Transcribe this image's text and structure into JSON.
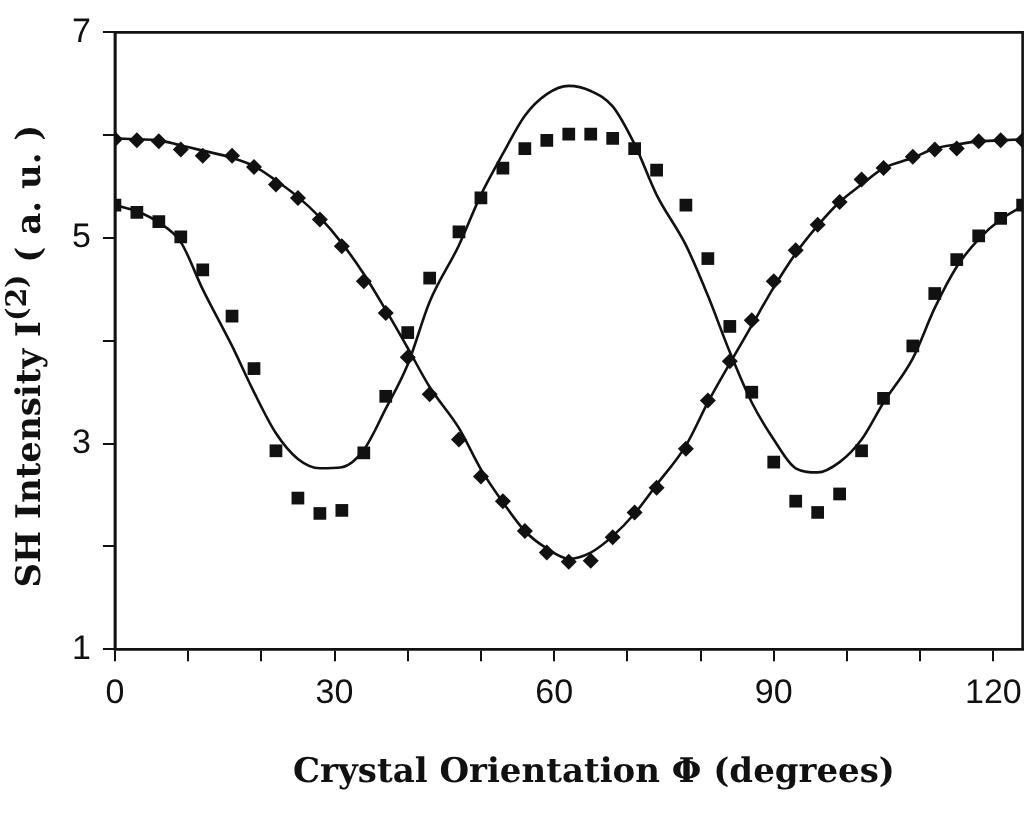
{
  "chart_data": {
    "type": "scatter",
    "xlabel": "Crystal Orientation Φ (degrees)",
    "ylabel": "SH Intensity I$^{(2)}$ ( a. u. )",
    "x": [
      0,
      3,
      6,
      9,
      12,
      16,
      19,
      22,
      25,
      28,
      31,
      34,
      37,
      40,
      43,
      47,
      50,
      53,
      56,
      59,
      62,
      65,
      68,
      71,
      74,
      78,
      81,
      84,
      87,
      90,
      93,
      96,
      99,
      102,
      105,
      109,
      112,
      115,
      118,
      121,
      124
    ],
    "series": [
      {
        "type": "scatter",
        "marker": "diamond",
        "color": "#111111",
        "values": [
          5.96,
          5.95,
          5.94,
          5.86,
          5.8,
          5.8,
          5.69,
          5.52,
          5.39,
          5.18,
          4.92,
          4.58,
          4.27,
          3.84,
          3.48,
          3.04,
          2.68,
          2.44,
          2.15,
          1.94,
          1.85,
          1.86,
          2.09,
          2.33,
          2.57,
          2.95,
          3.42,
          3.8,
          4.2,
          4.58,
          4.88,
          5.13,
          5.35,
          5.57,
          5.68,
          5.79,
          5.86,
          5.87,
          5.94,
          5.95,
          5.95
        ]
      },
      {
        "type": "scatter",
        "marker": "square",
        "color": "#111111",
        "values": [
          5.32,
          5.25,
          5.16,
          5.01,
          4.69,
          4.24,
          3.73,
          2.93,
          2.47,
          2.32,
          2.35,
          2.91,
          3.46,
          4.08,
          4.61,
          5.06,
          5.39,
          5.68,
          5.87,
          5.95,
          6.01,
          6.01,
          5.97,
          5.87,
          5.66,
          5.32,
          4.8,
          4.14,
          3.5,
          2.82,
          2.44,
          2.33,
          2.51,
          2.93,
          3.44,
          3.95,
          4.46,
          4.79,
          5.02,
          5.19,
          5.32
        ]
      },
      {
        "type": "line",
        "marker": "none",
        "color": "#111111",
        "values": [
          5.97,
          5.96,
          5.95,
          5.9,
          5.85,
          5.78,
          5.7,
          5.56,
          5.4,
          5.2,
          4.95,
          4.65,
          4.3,
          3.93,
          3.55,
          3.15,
          2.75,
          2.43,
          2.15,
          1.98,
          1.88,
          1.94,
          2.1,
          2.32,
          2.6,
          2.98,
          3.4,
          3.78,
          4.15,
          4.52,
          4.85,
          5.12,
          5.35,
          5.52,
          5.68,
          5.78,
          5.87,
          5.91,
          5.94,
          5.95,
          5.96
        ]
      },
      {
        "type": "line",
        "marker": "none",
        "color": "#111111",
        "values": [
          5.32,
          5.26,
          5.15,
          4.96,
          4.5,
          3.95,
          3.5,
          3.1,
          2.85,
          2.76,
          2.77,
          2.94,
          3.34,
          3.77,
          4.38,
          4.93,
          5.42,
          5.82,
          6.19,
          6.4,
          6.48,
          6.43,
          6.28,
          5.91,
          5.42,
          4.93,
          4.44,
          3.89,
          3.4,
          3.04,
          2.76,
          2.72,
          2.82,
          3.04,
          3.4,
          3.83,
          4.32,
          4.72,
          4.99,
          5.18,
          5.31
        ]
      }
    ],
    "xlim": [
      0,
      124
    ],
    "xticks": [
      0,
      {
        "value": 10,
        "label": null
      },
      {
        "value": 20,
        "label": null
      },
      30,
      {
        "value": 40,
        "label": null
      },
      {
        "value": 50,
        "label": null
      },
      60,
      {
        "value": 70,
        "label": null
      },
      {
        "value": 80,
        "label": null
      },
      90,
      {
        "value": 100,
        "label": null
      },
      {
        "value": 110,
        "label": null
      },
      120
    ],
    "ylim": [
      1,
      7
    ],
    "yticks": [
      1,
      {
        "value": 2,
        "label": null
      },
      3,
      {
        "value": 4,
        "label": null
      },
      5,
      {
        "value": 6,
        "label": null
      },
      7
    ],
    "grid": false,
    "legend": false
  }
}
